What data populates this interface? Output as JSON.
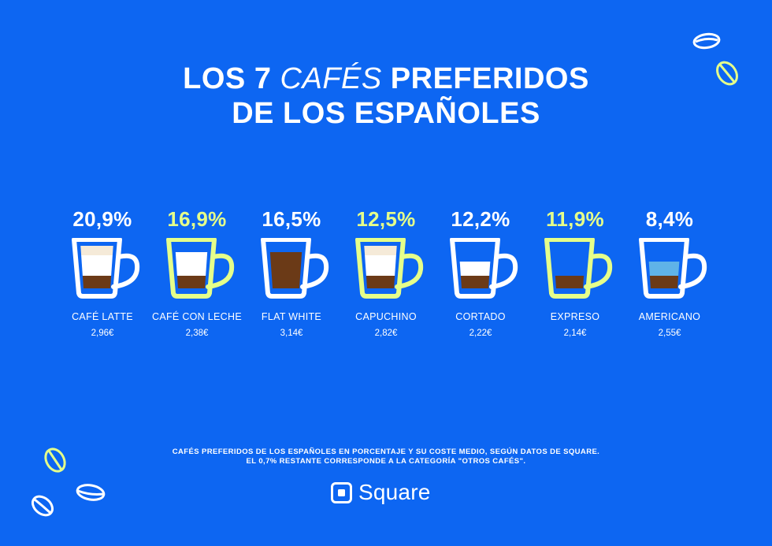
{
  "title": {
    "line1_start": "LOS 7",
    "line1_script": "CAFÉS",
    "line1_end": "PREFERIDOS",
    "line2": "DE LOS ESPAÑOLES"
  },
  "colors": {
    "background": "#0d66f2",
    "white": "#ffffff",
    "accent": "#e5ff8a",
    "coffee": "#6b3a17",
    "milk": "#ffffff",
    "foam": "#f5ead8",
    "water": "#5fb3e8"
  },
  "coffees": [
    {
      "percent": "20,9%",
      "name": "CAFÉ LATTE",
      "price": "2,96€",
      "highlight": false,
      "layers": [
        "foam",
        "milk",
        "coffee"
      ]
    },
    {
      "percent": "16,9%",
      "name": "CAFÉ CON LECHE",
      "price": "2,38€",
      "highlight": true,
      "layers": [
        "milk",
        "coffee"
      ]
    },
    {
      "percent": "16,5%",
      "name": "FLAT WHITE",
      "price": "3,14€",
      "highlight": false,
      "layers": [
        "coffee-full"
      ]
    },
    {
      "percent": "12,5%",
      "name": "CAPUCHINO",
      "price": "2,82€",
      "highlight": true,
      "layers": [
        "foam",
        "milk",
        "coffee"
      ]
    },
    {
      "percent": "12,2%",
      "name": "CORTADO",
      "price": "2,22€",
      "highlight": false,
      "layers": [
        "milk-low",
        "coffee"
      ]
    },
    {
      "percent": "11,9%",
      "name": "EXPRESO",
      "price": "2,14€",
      "highlight": true,
      "layers": [
        "coffee-only"
      ]
    },
    {
      "percent": "8,4%",
      "name": "AMERICANO",
      "price": "2,55€",
      "highlight": false,
      "layers": [
        "water",
        "coffee"
      ]
    }
  ],
  "footnote": {
    "line1": "CAFÉS PREFERIDOS DE LOS ESPAÑOLES EN PORCENTAJE Y SU COSTE MEDIO, SEGÚN DATOS DE SQUARE.",
    "line2": "EL 0,7% RESTANTE CORRESPONDE A LA CATEGORÍA \"OTROS CAFÉS\"."
  },
  "brand": {
    "name": "Square",
    "icon": "square-logo-icon"
  },
  "decorations": {
    "icon": "coffee-bean-icon"
  }
}
